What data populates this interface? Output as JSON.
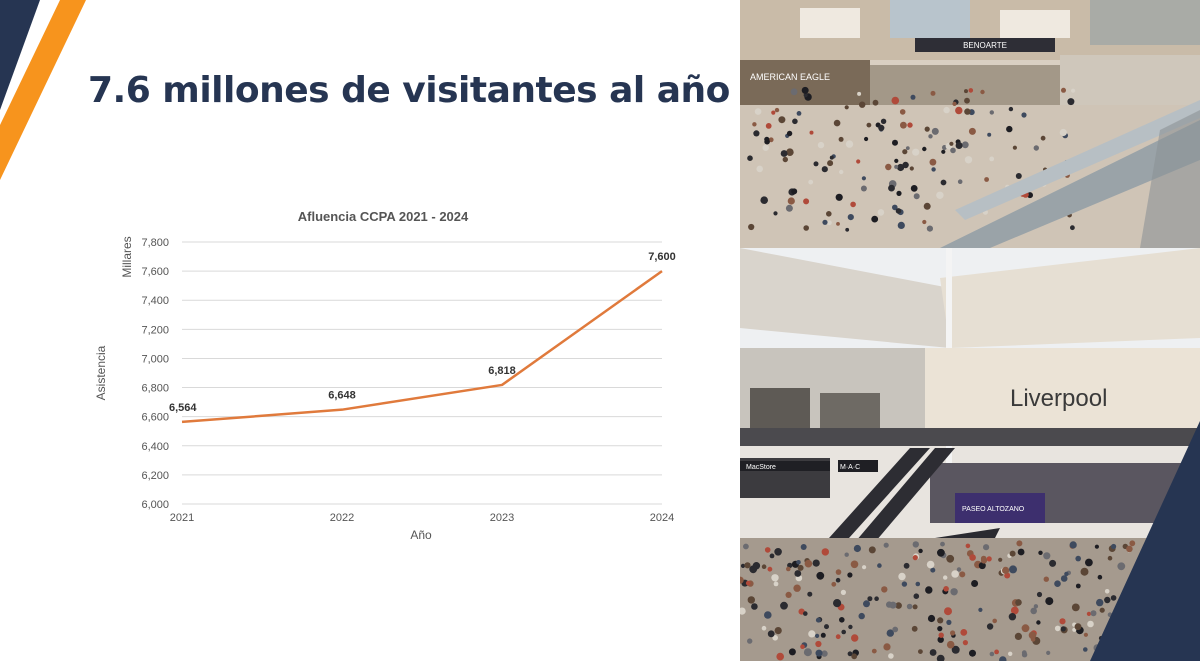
{
  "slide": {
    "title": "7.6 millones de visitantes al año",
    "colors": {
      "navy": "#263552",
      "orange": "#f7941d",
      "line": "#e07a3c",
      "grid": "#d9d9d9"
    }
  },
  "chart_data": {
    "type": "line",
    "title": "Afluencia CCPA 2021 - 2024",
    "xlabel": "Año",
    "ylabel": "Asistencia",
    "units_label": "Millares",
    "categories": [
      "2021",
      "2022",
      "2023",
      "2024"
    ],
    "series": [
      {
        "values": [
          6564,
          6648,
          6818,
          7600
        ],
        "labels": [
          "6,564",
          "6,648",
          "6,818",
          "7,600"
        ]
      }
    ],
    "ylim": [
      6000,
      7800
    ],
    "yticks": [
      "6,000",
      "6,200",
      "6,400",
      "6,600",
      "6,800",
      "7,000",
      "7,200",
      "7,400",
      "7,600",
      "7,800"
    ],
    "ytick_values": [
      6000,
      6200,
      6400,
      6600,
      6800,
      7000,
      7200,
      7400,
      7600,
      7800
    ],
    "grid": true,
    "legend": "none",
    "line_color": "#e07a3c"
  },
  "photos": {
    "top": {
      "store_sign": "AMERICAN EAGLE",
      "banner": "BENOARTE"
    },
    "bottom": {
      "store_sign": "Liverpool",
      "sign_left": "MacStore",
      "sign_center": "M·A·C",
      "stage_banner": "PASEO ALTOZANO"
    }
  }
}
